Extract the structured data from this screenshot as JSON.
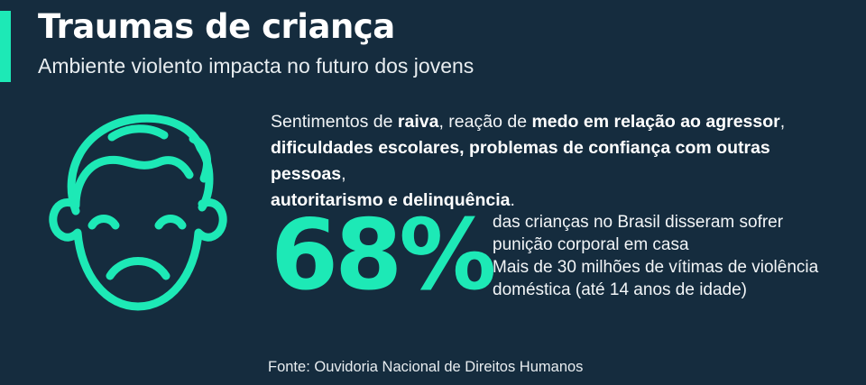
{
  "header": {
    "title": "Traumas de criança",
    "subtitle": "Ambiente violento impacta no futuro dos jovens"
  },
  "description": {
    "p1": "Sentimentos de ",
    "b1": "raiva",
    "p2": ", reação de ",
    "b2": "medo em relação ao agressor",
    "p3": ",",
    "b3": "dificuldades escolares, problemas de confiança com outras pessoas",
    "p4": ",",
    "b4": "autoritarismo e delinquência",
    "p5": "."
  },
  "stat": {
    "percent": "68%",
    "line1": "das crianças no Brasil disseram sofrer",
    "line2": "punição corporal em casa",
    "line3": "Mais de 30 milhões de vítimas de violência",
    "line4": "doméstica (até 14 anos de idade)"
  },
  "source": "Fonte: Ouvidoria Nacional de Direitos Humanos",
  "icon": "sad-face-icon",
  "colors": {
    "background": "#152c3e",
    "accent": "#1de9b6",
    "text": "#ffffff"
  }
}
